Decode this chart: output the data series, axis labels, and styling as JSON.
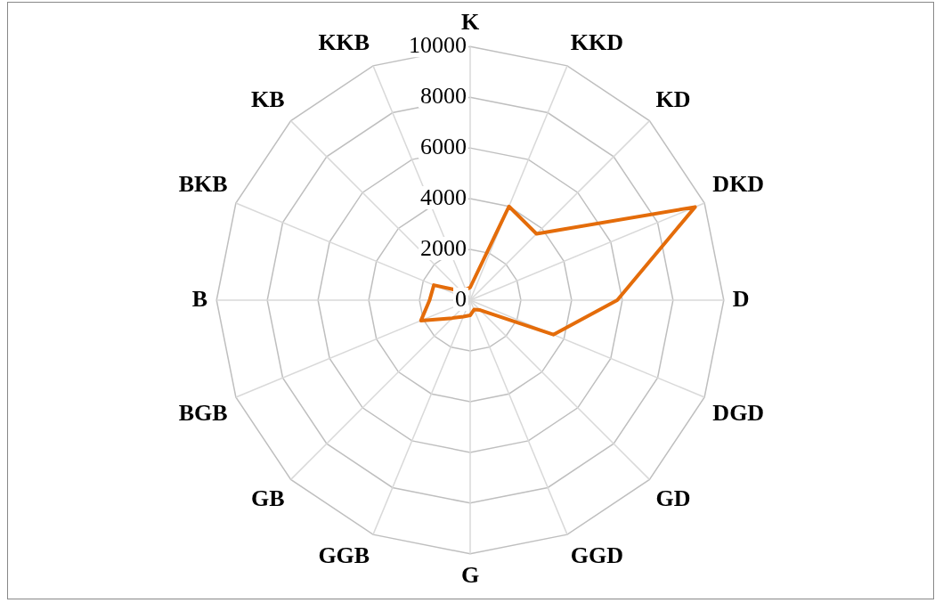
{
  "chart_data": {
    "type": "radar",
    "categories": [
      "K",
      "KKD",
      "KD",
      "DKD",
      "D",
      "DGD",
      "GD",
      "GGD",
      "G",
      "GGB",
      "GB",
      "BGB",
      "B",
      "BKB",
      "KB",
      "KKB"
    ],
    "series": [
      {
        "color": "#e46c0a",
        "values": [
          500,
          4000,
          3700,
          9600,
          5800,
          3550,
          550,
          400,
          600,
          700,
          1000,
          2100,
          1600,
          1550,
          500,
          450
        ]
      }
    ],
    "ylim": [
      0,
      10000
    ],
    "yticks": [
      0,
      2000,
      4000,
      6000,
      8000,
      10000
    ],
    "grid": true,
    "legend": false,
    "marker": "none",
    "line_style": "solid"
  }
}
